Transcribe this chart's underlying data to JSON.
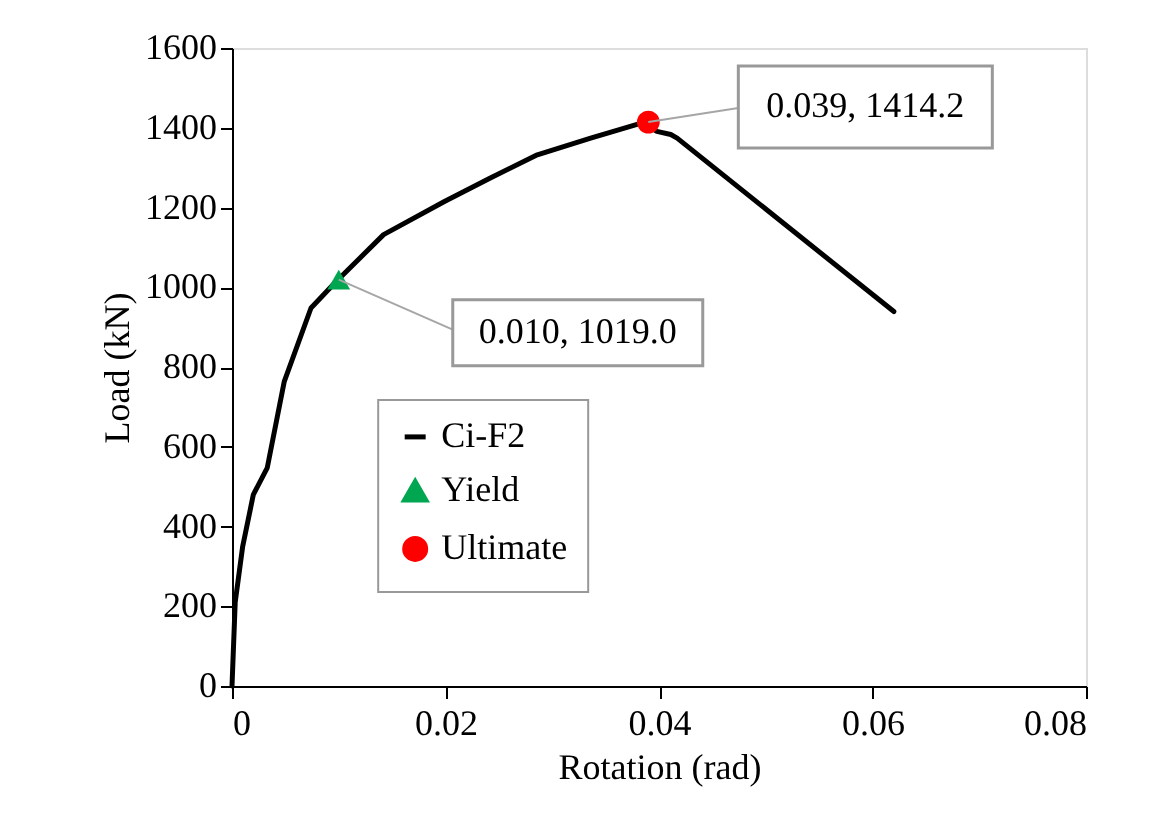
{
  "chart_data": {
    "type": "line",
    "xlabel": "Rotation (rad)",
    "ylabel": "Load (kN)",
    "xlim": [
      0,
      0.08
    ],
    "xticks": [
      0,
      0.02,
      0.04,
      0.06,
      0.08
    ],
    "ylim": [
      0,
      1600
    ],
    "yticks": [
      0,
      200,
      400,
      600,
      800,
      1000,
      1200,
      1400,
      1600
    ],
    "grid": false,
    "legend": "bottom left",
    "series": [
      {
        "name": "Ci-F2",
        "color": "#000000",
        "marker": "none",
        "line_style": "solid",
        "x": [
          0,
          0.0003,
          0.001,
          0.002,
          0.0033,
          0.0049,
          0.0074,
          0.0096,
          0.0142,
          0.0199,
          0.0242,
          0.0286,
          0.0336,
          0.0385,
          0.0398,
          0.0411,
          0.0417,
          0.062
        ],
        "values": [
          0,
          210,
          350,
          480,
          547,
          764,
          948,
          1010,
          1132,
          1215,
          1274,
          1332,
          1374,
          1413,
          1391,
          1383,
          1374,
          939
        ]
      },
      {
        "name": "Yield",
        "type": "scatter",
        "color": "#00a650",
        "marker": "triangle",
        "x": [
          0.01
        ],
        "values": [
          1019.0
        ]
      },
      {
        "name": "Ultimate",
        "type": "scatter",
        "color": "#ff0000",
        "marker": "circle",
        "x": [
          0.039
        ],
        "values": [
          1414.2
        ]
      }
    ],
    "annotations": [
      {
        "text": "0.010, 1019.0",
        "x": 0.01,
        "y": 1019.0
      },
      {
        "text": "0.039, 1414.2",
        "x": 0.039,
        "y": 1414.2
      }
    ]
  }
}
